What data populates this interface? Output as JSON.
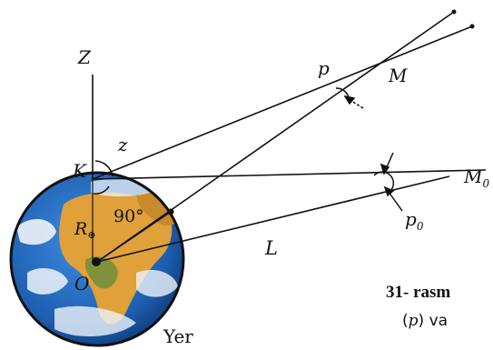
{
  "diagram": {
    "labels": {
      "zenith": "Z",
      "observer": "K",
      "zenith_distance": "z",
      "right_angle": "90°",
      "radius": "R",
      "radius_subscript": "⊕",
      "center": "O",
      "earth": "Yer",
      "object": "M",
      "object_horizon": "M",
      "object_horizon_subscript": "0",
      "parallax": "p",
      "horizontal_parallax": "p",
      "horizontal_parallax_subscript": "0",
      "distance": "L"
    },
    "colors": {
      "ocean": "#1d5fb0",
      "land": "#e0a13a",
      "cloud": "#eef3fa",
      "line": "#111111"
    }
  },
  "caption": {
    "title": "31- rasm",
    "text_open": "(",
    "text_var": "p",
    "text_close": ") va"
  }
}
